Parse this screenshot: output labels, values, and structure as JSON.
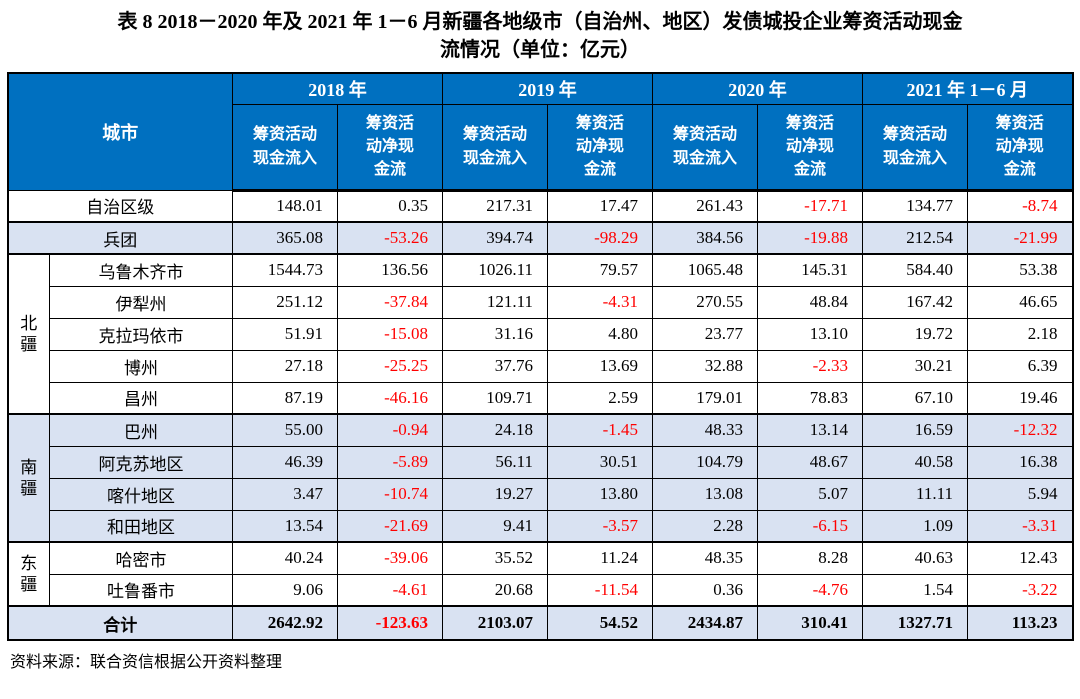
{
  "title": {
    "line1": "表 8  2018－2020 年及 2021 年 1－6 月新疆各地级市（自治州、地区）发债城投企业筹资活动现金",
    "line2": "流情况（单位：亿元）"
  },
  "header": {
    "city_col": "城市",
    "years": [
      {
        "label": "2018 年"
      },
      {
        "label": "2019 年"
      },
      {
        "label": "2020 年"
      },
      {
        "label": "2021 年 1－6 月"
      }
    ],
    "inflow_col": "筹资活动\n现金流入",
    "net_col": "筹资活\n动净现\n金流"
  },
  "rows": [
    {
      "city": "自治区级",
      "span2": true,
      "shaded": false,
      "values": [
        "148.01",
        "0.35",
        "217.31",
        "17.47",
        "261.43",
        "-17.71",
        "134.77",
        "-8.74"
      ]
    },
    {
      "city": "兵团",
      "span2": true,
      "shaded": true,
      "sep": true,
      "values": [
        "365.08",
        "-53.26",
        "394.74",
        "-98.29",
        "384.56",
        "-19.88",
        "212.54",
        "-21.99"
      ]
    },
    {
      "region": "北\n疆",
      "region_span": 5,
      "city": "乌鲁木齐市",
      "shaded": false,
      "sep": true,
      "values": [
        "1544.73",
        "136.56",
        "1026.11",
        "79.57",
        "1065.48",
        "145.31",
        "584.40",
        "53.38"
      ]
    },
    {
      "city": "伊犁州",
      "shaded": false,
      "values": [
        "251.12",
        "-37.84",
        "121.11",
        "-4.31",
        "270.55",
        "48.84",
        "167.42",
        "46.65"
      ]
    },
    {
      "city": "克拉玛依市",
      "shaded": false,
      "values": [
        "51.91",
        "-15.08",
        "31.16",
        "4.80",
        "23.77",
        "13.10",
        "19.72",
        "2.18"
      ]
    },
    {
      "city": "博州",
      "shaded": false,
      "values": [
        "27.18",
        "-25.25",
        "37.76",
        "13.69",
        "32.88",
        "-2.33",
        "30.21",
        "6.39"
      ]
    },
    {
      "city": "昌州",
      "shaded": false,
      "values": [
        "87.19",
        "-46.16",
        "109.71",
        "2.59",
        "179.01",
        "78.83",
        "67.10",
        "19.46"
      ]
    },
    {
      "region": "南\n疆",
      "region_span": 4,
      "city": "巴州",
      "shaded": true,
      "sep": true,
      "values": [
        "55.00",
        "-0.94",
        "24.18",
        "-1.45",
        "48.33",
        "13.14",
        "16.59",
        "-12.32"
      ]
    },
    {
      "city": "阿克苏地区",
      "shaded": true,
      "values": [
        "46.39",
        "-5.89",
        "56.11",
        "30.51",
        "104.79",
        "48.67",
        "40.58",
        "16.38"
      ]
    },
    {
      "city": "喀什地区",
      "shaded": true,
      "values": [
        "3.47",
        "-10.74",
        "19.27",
        "13.80",
        "13.08",
        "5.07",
        "11.11",
        "5.94"
      ]
    },
    {
      "city": "和田地区",
      "shaded": true,
      "values": [
        "13.54",
        "-21.69",
        "9.41",
        "-3.57",
        "2.28",
        "-6.15",
        "1.09",
        "-3.31"
      ]
    },
    {
      "region": "东\n疆",
      "region_span": 2,
      "city": "哈密市",
      "shaded": false,
      "sep": true,
      "values": [
        "40.24",
        "-39.06",
        "35.52",
        "11.24",
        "48.35",
        "8.28",
        "40.63",
        "12.43"
      ]
    },
    {
      "city": "吐鲁番市",
      "shaded": false,
      "values": [
        "9.06",
        "-4.61",
        "20.68",
        "-11.54",
        "0.36",
        "-4.76",
        "1.54",
        "-3.22"
      ]
    },
    {
      "city": "合计",
      "span2": true,
      "shaded": true,
      "sep": true,
      "bold": true,
      "values": [
        "2642.92",
        "-123.63",
        "2103.07",
        "54.52",
        "2434.87",
        "310.41",
        "1327.71",
        "113.23"
      ]
    }
  ],
  "source_note": "资料来源：联合资信根据公开资料整理",
  "colors": {
    "header_bg": "#0070C0",
    "header_text": "#FFFFFF",
    "shaded_row_bg": "#D9E2F2",
    "negative_value": "#FF0000",
    "border": "#000000"
  }
}
